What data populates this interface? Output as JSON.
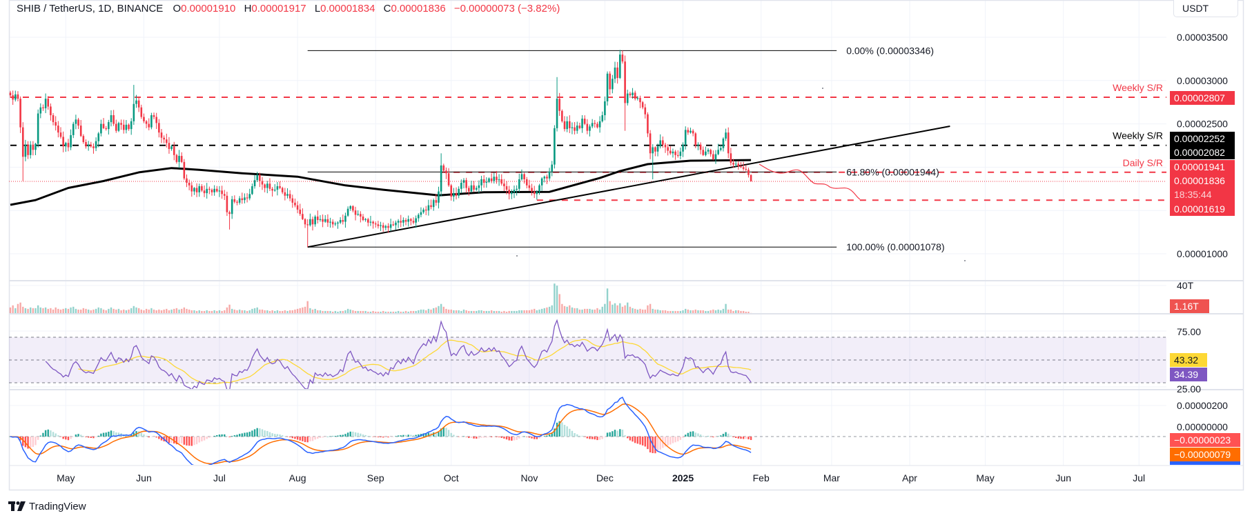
{
  "header": {
    "symbol": "SHIB / TetherUS, 1D, BINANCE",
    "o_label": "O",
    "o_value": "0.00001910",
    "h_label": "H",
    "h_value": "0.00001917",
    "l_label": "L",
    "l_value": "0.00001834",
    "c_label": "C",
    "c_value": "0.00001836",
    "change": "−0.00000073 (−3.82%)"
  },
  "currency_button": "USDT",
  "price_axis": [
    {
      "label": "0.00003500",
      "value": 3.5e-05
    },
    {
      "label": "0.00003000",
      "value": 3e-05
    },
    {
      "label": "0.00002500",
      "value": 2.5e-05
    },
    {
      "label": "0.00001000",
      "value": 1e-05
    }
  ],
  "price_badges": {
    "weekly_sr_red": "0.00002807",
    "weekly_sr_black": "0.00002252",
    "ma200": "0.00002082",
    "daily_sr": "0.00001941",
    "last_price": "0.00001836",
    "countdown": "18:35:44",
    "support": "0.00001619"
  },
  "levels": [
    {
      "label": "Weekly S/R",
      "price": 2.807e-05,
      "color": "#f23645",
      "from": "2024-04-09"
    },
    {
      "label": "Weekly S/R",
      "price": 2.252e-05,
      "color": "#000000",
      "from": "2024-04-09"
    },
    {
      "label": "Daily S/R",
      "price": 1.941e-05,
      "color": "#f23645",
      "from": "2024-09-27"
    },
    {
      "label": "",
      "price": 1.619e-05,
      "color": "#f23645",
      "from": "2024-11-04"
    }
  ],
  "fibonacci": {
    "from": "2024-08-05",
    "to": "2025-03-03",
    "levels": [
      {
        "label": "0.00% (0.00003346)",
        "price": 3.346e-05
      },
      {
        "label": "61.80% (0.00001944)",
        "price": 1.944e-05
      },
      {
        "label": "100.00% (0.00001078)",
        "price": 1.078e-05
      }
    ]
  },
  "trendline": {
    "start": {
      "date": "2024-08-05",
      "price": 1.078e-05
    },
    "end": {
      "date": "2025-04-17",
      "price": 2.473e-05
    }
  },
  "time_axis": [
    {
      "label": "May",
      "date": "2024-05-01"
    },
    {
      "label": "Jun",
      "date": "2024-06-01"
    },
    {
      "label": "Jul",
      "date": "2024-07-01"
    },
    {
      "label": "Aug",
      "date": "2024-08-01"
    },
    {
      "label": "Sep",
      "date": "2024-09-01"
    },
    {
      "label": "Oct",
      "date": "2024-10-01"
    },
    {
      "label": "Nov",
      "date": "2024-11-01"
    },
    {
      "label": "Dec",
      "date": "2024-12-01"
    },
    {
      "label": "2025",
      "date": "2025-01-01",
      "bold": true
    },
    {
      "label": "Feb",
      "date": "2025-02-01"
    },
    {
      "label": "Mar",
      "date": "2025-03-01"
    },
    {
      "label": "Apr",
      "date": "2025-04-01"
    },
    {
      "label": "May",
      "date": "2025-05-01"
    },
    {
      "label": "Jun",
      "date": "2025-06-01"
    },
    {
      "label": "Jul",
      "date": "2025-07-01"
    }
  ],
  "volume_pane": {
    "axis_label": "40T",
    "axis_value": 40,
    "last_badge": "1.16T"
  },
  "rsi_pane": {
    "axis_top": "75.00",
    "axis_bottom": "25.00",
    "ma_badge": "43.32",
    "rsi_badge": "34.39",
    "upper": 70,
    "middle": 50,
    "lower": 30
  },
  "macd_pane": {
    "axis_top": "0.00000200",
    "axis_zero": "0.00000000",
    "hist_badge": "−0.00000023",
    "signal_badge": "−0.00000079"
  },
  "colors": {
    "up": "#089981",
    "down": "#f23645",
    "rsi": "#7e57c2",
    "rsi_ma": "#fdd835",
    "macd": "#2962ff",
    "signal": "#ff6d00"
  },
  "branding": "TradingView",
  "chart_data": {
    "type": "candlestick",
    "interval": "1D",
    "x_start": "2024-04-09",
    "first_open": 2.86e-05,
    "closes": [
      2.83e-05,
      2.78e-05,
      2.84e-05,
      2.79e-05,
      2.46e-05,
      2.12e-05,
      2.26e-05,
      2.14e-05,
      2.26e-05,
      2.2e-05,
      2.27e-05,
      2.62e-05,
      2.69e-05,
      2.68e-05,
      2.79e-05,
      2.7e-05,
      2.6e-05,
      2.52e-05,
      2.48e-05,
      2.4e-05,
      2.35e-05,
      2.24e-05,
      2.28e-05,
      2.23e-05,
      2.37e-05,
      2.5e-05,
      2.55e-05,
      2.48e-05,
      2.36e-05,
      2.29e-05,
      2.24e-05,
      2.26e-05,
      2.24e-05,
      2.22e-05,
      2.3e-05,
      2.39e-05,
      2.5e-05,
      2.45e-05,
      2.44e-05,
      2.52e-05,
      2.6e-05,
      2.5e-05,
      2.42e-05,
      2.51e-05,
      2.49e-05,
      2.43e-05,
      2.49e-05,
      2.44e-05,
      2.53e-05,
      2.73e-05,
      2.77e-05,
      2.69e-05,
      2.58e-05,
      2.53e-05,
      2.5e-05,
      2.46e-05,
      2.6e-05,
      2.58e-05,
      2.51e-05,
      2.4e-05,
      2.34e-05,
      2.32e-05,
      2.28e-05,
      2.21e-05,
      2.24e-05,
      2.14e-05,
      2.06e-05,
      2.13e-05,
      2.06e-05,
      1.87e-05,
      1.82e-05,
      1.79e-05,
      1.72e-05,
      1.76e-05,
      1.71e-05,
      1.78e-05,
      1.73e-05,
      1.7e-05,
      1.75e-05,
      1.74e-05,
      1.71e-05,
      1.75e-05,
      1.72e-05,
      1.73e-05,
      1.69e-05,
      1.67e-05,
      1.48e-05,
      1.46e-05,
      1.63e-05,
      1.6e-05,
      1.59e-05,
      1.64e-05,
      1.62e-05,
      1.65e-05,
      1.64e-05,
      1.69e-05,
      1.78e-05,
      1.85e-05,
      1.91e-05,
      1.84e-05,
      1.8e-05,
      1.76e-05,
      1.81e-05,
      1.75e-05,
      1.73e-05,
      1.74e-05,
      1.78e-05,
      1.76e-05,
      1.71e-05,
      1.67e-05,
      1.69e-05,
      1.64e-05,
      1.59e-05,
      1.56e-05,
      1.51e-05,
      1.46e-05,
      1.4e-05,
      1.34e-05,
      1.33e-05,
      1.4e-05,
      1.34e-05,
      1.43e-05,
      1.39e-05,
      1.4e-05,
      1.37e-05,
      1.4e-05,
      1.36e-05,
      1.37e-05,
      1.34e-05,
      1.35e-05,
      1.36e-05,
      1.39e-05,
      1.37e-05,
      1.44e-05,
      1.52e-05,
      1.55e-05,
      1.5e-05,
      1.45e-05,
      1.46e-05,
      1.43e-05,
      1.39e-05,
      1.4e-05,
      1.36e-05,
      1.37e-05,
      1.35e-05,
      1.34e-05,
      1.32e-05,
      1.33e-05,
      1.3e-05,
      1.32e-05,
      1.3e-05,
      1.34e-05,
      1.33e-05,
      1.36e-05,
      1.38e-05,
      1.36e-05,
      1.39e-05,
      1.37e-05,
      1.4e-05,
      1.38e-05,
      1.36e-05,
      1.41e-05,
      1.45e-05,
      1.48e-05,
      1.51e-05,
      1.5e-05,
      1.56e-05,
      1.54e-05,
      1.62e-05,
      1.59e-05,
      1.72e-05,
      2.02e-05,
      1.96e-05,
      1.93e-05,
      1.79e-05,
      1.66e-05,
      1.7e-05,
      1.67e-05,
      1.75e-05,
      1.82e-05,
      1.85e-05,
      1.76e-05,
      1.72e-05,
      1.79e-05,
      1.74e-05,
      1.76e-05,
      1.79e-05,
      1.86e-05,
      1.82e-05,
      1.83e-05,
      1.87e-05,
      1.84e-05,
      1.89e-05,
      1.85e-05,
      1.86e-05,
      1.81e-05,
      1.78e-05,
      1.74e-05,
      1.69e-05,
      1.71e-05,
      1.74e-05,
      1.75e-05,
      1.86e-05,
      1.92e-05,
      1.86e-05,
      1.79e-05,
      1.76e-05,
      1.72e-05,
      1.69e-05,
      1.72e-05,
      1.79e-05,
      1.87e-05,
      1.89e-05,
      1.87e-05,
      1.95e-05,
      2.03e-05,
      2.45e-05,
      2.79e-05,
      2.65e-05,
      2.53e-05,
      2.44e-05,
      2.53e-05,
      2.45e-05,
      2.46e-05,
      2.42e-05,
      2.48e-05,
      2.45e-05,
      2.56e-05,
      2.5e-05,
      2.42e-05,
      2.47e-05,
      2.51e-05,
      2.5e-05,
      2.46e-05,
      2.53e-05,
      2.6e-05,
      2.76e-05,
      3.08e-05,
      2.9e-05,
      3.02e-05,
      3.15e-05,
      3.03e-05,
      3.3e-05,
      3.22e-05,
      2.74e-05,
      2.85e-05,
      2.83e-05,
      2.86e-05,
      2.79e-05,
      2.8e-05,
      2.75e-05,
      2.69e-05,
      2.61e-05,
      2.39e-05,
      2.16e-05,
      2.23e-05,
      2.18e-05,
      2.24e-05,
      2.31e-05,
      2.26e-05,
      2.23e-05,
      2.19e-05,
      2.16e-05,
      2.18e-05,
      2.14e-05,
      2.13e-05,
      2.18e-05,
      2.26e-05,
      2.43e-05,
      2.4e-05,
      2.42e-05,
      2.39e-05,
      2.25e-05,
      2.26e-05,
      2.2e-05,
      2.14e-05,
      2.18e-05,
      2.2e-05,
      2.15e-05,
      2.09e-05,
      2.15e-05,
      2.2e-05,
      2.22e-05,
      2.33e-05,
      2.4e-05,
      2.16e-05,
      2.05e-05,
      2.03e-05,
      2.04e-05,
      2.01e-05,
      2e-05,
      1.98e-05,
      1.97e-05,
      1.91e-05,
      1.836e-05
    ],
    "wick_extremes": [
      {
        "date": "2024-04-14",
        "low": 1.84e-05
      },
      {
        "date": "2024-05-28",
        "high": 2.95e-05
      },
      {
        "date": "2024-07-05",
        "low": 1.28e-05
      },
      {
        "date": "2024-08-05",
        "low": 1.078e-05
      },
      {
        "date": "2024-09-27",
        "high": 2.16e-05
      },
      {
        "date": "2024-11-12",
        "high": 3.04e-05
      },
      {
        "date": "2024-12-08",
        "high": 3.346e-05
      },
      {
        "date": "2024-12-09",
        "low": 2.42e-05
      },
      {
        "date": "2024-12-20",
        "low": 1.86e-05
      },
      {
        "date": "2025-01-28",
        "high": 1.917e-05,
        "low": 1.834e-05
      }
    ],
    "volume_T": [
      9,
      12,
      8,
      14,
      16,
      10,
      8,
      7,
      9,
      8,
      8,
      12,
      9,
      8,
      9,
      7,
      8,
      6,
      9,
      7,
      6,
      7,
      8,
      7,
      9,
      10,
      7,
      6,
      6,
      8,
      7,
      6,
      5,
      6,
      7,
      9,
      8,
      6,
      5,
      7,
      9,
      7,
      6,
      7,
      5,
      6,
      5,
      6,
      8,
      11,
      9,
      8,
      6,
      5,
      7,
      6,
      8,
      6,
      5,
      6,
      5,
      6,
      7,
      5,
      6,
      7,
      8,
      6,
      7,
      9,
      7,
      6,
      5,
      5,
      4,
      5,
      4,
      4,
      5,
      4,
      4,
      5,
      4,
      5,
      4,
      5,
      9,
      13,
      7,
      6,
      5,
      6,
      5,
      5,
      4,
      5,
      7,
      8,
      9,
      6,
      6,
      5,
      5,
      4,
      5,
      4,
      5,
      4,
      4,
      5,
      4,
      5,
      5,
      6,
      7,
      8,
      9,
      10,
      18,
      8,
      6,
      7,
      5,
      5,
      4,
      4,
      4,
      4,
      3,
      4,
      3,
      4,
      4,
      5,
      7,
      6,
      5,
      4,
      4,
      4,
      4,
      4,
      3,
      3,
      4,
      3,
      3,
      3,
      4,
      3,
      3,
      3,
      3,
      3,
      4,
      3,
      3,
      4,
      3,
      4,
      4,
      4,
      5,
      6,
      6,
      5,
      7,
      6,
      8,
      9,
      11,
      14,
      10,
      7,
      6,
      6,
      5,
      5,
      5,
      4,
      6,
      5,
      4,
      4,
      4,
      4,
      5,
      5,
      4,
      4,
      4,
      5,
      4,
      4,
      4,
      3,
      4,
      3,
      4,
      4,
      4,
      4,
      5,
      5,
      5,
      5,
      5,
      6,
      7,
      5,
      6,
      7,
      8,
      9,
      10,
      12,
      43,
      40,
      28,
      14,
      11,
      10,
      12,
      9,
      8,
      8,
      6,
      6,
      7,
      7,
      7,
      6,
      6,
      8,
      6,
      10,
      14,
      36,
      18,
      13,
      15,
      12,
      15,
      10,
      12,
      16,
      10,
      8,
      7,
      6,
      7,
      6,
      6,
      12,
      14,
      7,
      6,
      6,
      5,
      5,
      5,
      4,
      4,
      4,
      4,
      4,
      4,
      5,
      7,
      6,
      5,
      5,
      6,
      5,
      5,
      5,
      4,
      4,
      5,
      6,
      5,
      6,
      5,
      7,
      14,
      6,
      6,
      4,
      5,
      5,
      4,
      4,
      3,
      3,
      1.16
    ],
    "ma200": [
      {
        "date": "2024-04-09",
        "value": 1.565e-05
      },
      {
        "date": "2024-04-19",
        "value": 1.62e-05
      },
      {
        "date": "2024-05-02",
        "value": 1.76e-05
      },
      {
        "date": "2024-05-16",
        "value": 1.84e-05
      },
      {
        "date": "2024-05-30",
        "value": 1.94e-05
      },
      {
        "date": "2024-06-12",
        "value": 1.99e-05
      },
      {
        "date": "2024-06-23",
        "value": 1.97e-05
      },
      {
        "date": "2024-07-10",
        "value": 1.93e-05
      },
      {
        "date": "2024-08-01",
        "value": 1.89e-05
      },
      {
        "date": "2024-08-20",
        "value": 1.79e-05
      },
      {
        "date": "2024-09-04",
        "value": 1.74e-05
      },
      {
        "date": "2024-09-26",
        "value": 1.675e-05
      },
      {
        "date": "2024-10-14",
        "value": 1.71e-05
      },
      {
        "date": "2024-11-09",
        "value": 1.715e-05
      },
      {
        "date": "2024-11-29",
        "value": 1.875e-05
      },
      {
        "date": "2024-12-07",
        "value": 1.955e-05
      },
      {
        "date": "2024-12-18",
        "value": 2.035e-05
      },
      {
        "date": "2025-01-04",
        "value": 2.075e-05
      },
      {
        "date": "2025-01-28",
        "value": 2.082e-05
      }
    ]
  }
}
